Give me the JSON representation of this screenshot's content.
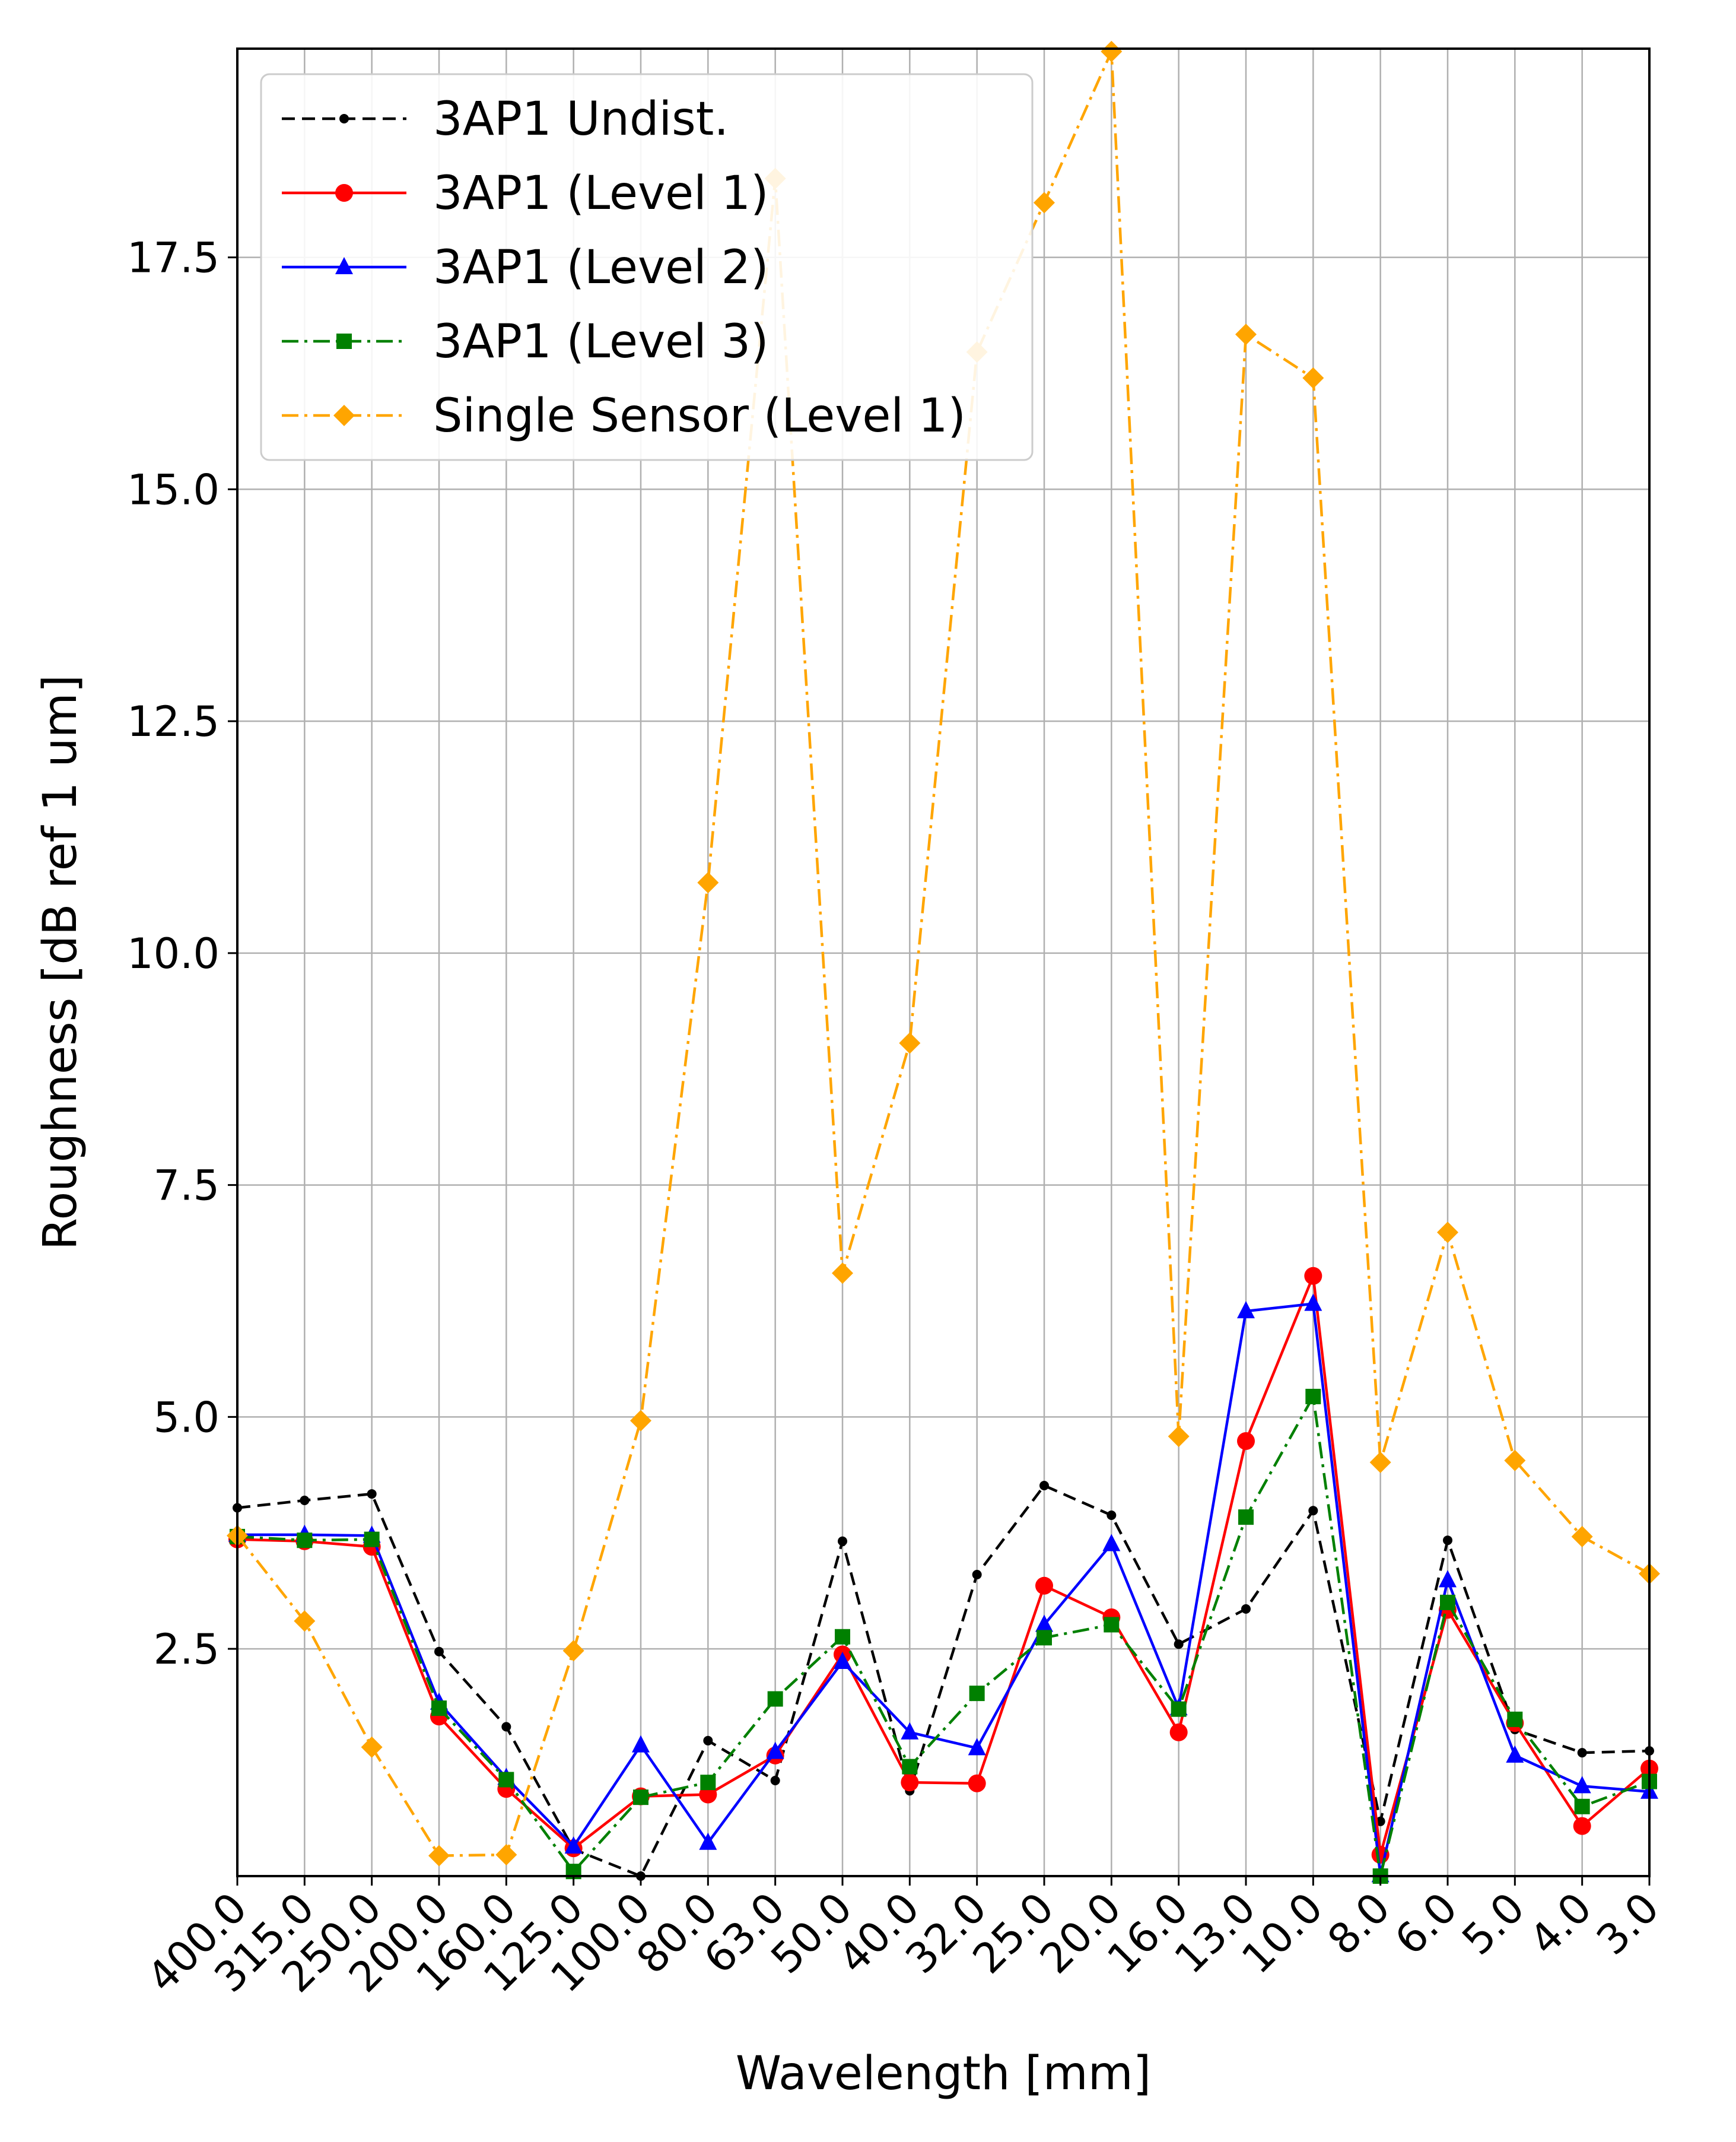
{
  "chart_data": {
    "type": "line",
    "title": "",
    "xlabel": "Wavelength [mm]",
    "ylabel": "Roughness [dB ref 1 um]",
    "categories": [
      "400.0",
      "315.0",
      "250.0",
      "200.0",
      "160.0",
      "125.0",
      "100.0",
      "80.0",
      "63.0",
      "50.0",
      "40.0",
      "32.0",
      "25.0",
      "20.0",
      "16.0",
      "13.0",
      "10.0",
      "8.0",
      "6.0",
      "5.0",
      "4.0",
      "3.0"
    ],
    "ylim": [
      0.05,
      19.75
    ],
    "yticks": [
      "2.5",
      "5.0",
      "7.5",
      "10.0",
      "12.5",
      "15.0",
      "17.5"
    ],
    "grid": true,
    "legend_position": "upper-left",
    "series": [
      {
        "name": "3AP1 Undist.",
        "color": "#000000",
        "linestyle": "dashed",
        "marker": "point",
        "values": [
          4.02,
          4.1,
          4.17,
          2.47,
          1.66,
          0.34,
          0.05,
          1.51,
          1.08,
          3.66,
          0.97,
          3.3,
          4.26,
          3.94,
          2.55,
          2.93,
          3.99,
          0.64,
          3.67,
          1.63,
          1.38,
          1.4
        ]
      },
      {
        "name": "3AP1 (Level 1)",
        "color": "#ff0000",
        "linestyle": "solid",
        "marker": "circle",
        "values": [
          3.68,
          3.66,
          3.6,
          1.77,
          0.99,
          0.35,
          0.91,
          0.93,
          1.35,
          2.44,
          1.06,
          1.05,
          3.18,
          2.84,
          1.6,
          4.74,
          6.52,
          0.28,
          2.92,
          1.7,
          0.59,
          1.21
        ]
      },
      {
        "name": "3AP1 (Level 2)",
        "color": "#0000ff",
        "linestyle": "solid",
        "marker": "triangle",
        "values": [
          3.73,
          3.73,
          3.72,
          1.92,
          1.11,
          0.37,
          1.46,
          0.41,
          1.39,
          2.36,
          1.6,
          1.43,
          2.76,
          3.63,
          1.86,
          6.14,
          6.22,
          0.06,
          3.24,
          1.35,
          1.02,
          0.96
        ]
      },
      {
        "name": "3AP1 (Level 3)",
        "color": "#008000",
        "linestyle": "dashdot",
        "marker": "square",
        "values": [
          3.71,
          3.67,
          3.68,
          1.86,
          1.09,
          0.1,
          0.9,
          1.06,
          1.96,
          2.63,
          1.23,
          2.02,
          2.62,
          2.76,
          1.85,
          3.92,
          5.22,
          0.05,
          3.0,
          1.74,
          0.8,
          1.07
        ]
      },
      {
        "name": "Single Sensor (Level 1)",
        "color": "#ffa500",
        "linestyle": "dashdot",
        "marker": "diamond",
        "values": [
          3.72,
          2.8,
          1.44,
          0.27,
          0.28,
          2.48,
          4.96,
          10.76,
          18.35,
          6.55,
          9.03,
          16.48,
          18.09,
          19.72,
          4.79,
          16.67,
          16.2,
          4.51,
          6.99,
          4.53,
          3.71,
          3.31
        ]
      }
    ]
  }
}
